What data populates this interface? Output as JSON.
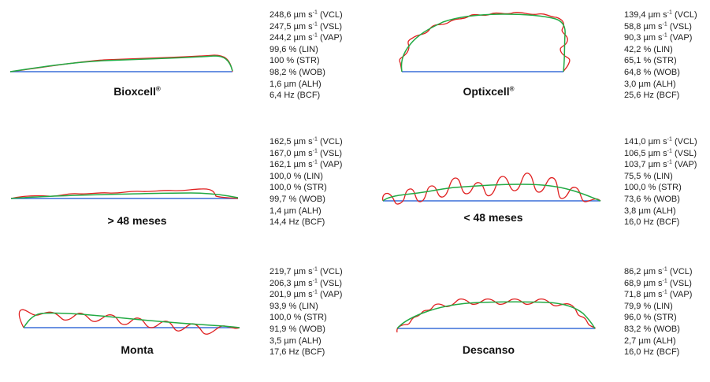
{
  "colors": {
    "vcl": "#e02020",
    "vap": "#22aa44",
    "vsl": "#3a6fd8"
  },
  "units": {
    "speed": "µm s",
    "exp": "-1",
    "pct": "%",
    "um": "µm",
    "hz": "Hz"
  },
  "panels": [
    {
      "name": "Bioxcell",
      "mark": "®",
      "metrics": {
        "vcl": "248,6",
        "vsl": "247,5",
        "vap": "244,2",
        "lin": "99,6",
        "str": "100",
        "wob": "98,2",
        "alh": "1,6",
        "bcf": "6,4"
      }
    },
    {
      "name": "Optixcell",
      "mark": "®",
      "metrics": {
        "vcl": "139,4",
        "vsl": "58,8",
        "vap": "90,3",
        "lin": "42,2",
        "str": "65,1",
        "wob": "64,8",
        "alh": "3,0",
        "bcf": "25,6"
      }
    },
    {
      "name": "> 48 meses",
      "mark": "",
      "metrics": {
        "vcl": "162,5",
        "vsl": "167,0",
        "vap": "162,1",
        "lin": "100,0",
        "str": "100,0",
        "wob": "99,7",
        "alh": "1,4",
        "bcf": "14,4"
      }
    },
    {
      "name": "< 48 meses",
      "mark": "",
      "metrics": {
        "vcl": "141,0",
        "vsl": "106,5",
        "vap": "103,7",
        "lin": "75,5",
        "str": "100,0",
        "wob": "73,6",
        "alh": "3,8",
        "bcf": "16,0"
      }
    },
    {
      "name": "Monta",
      "mark": "",
      "metrics": {
        "vcl": "219,7",
        "vsl": "206,3",
        "vap": "201,9",
        "lin": "93,9",
        "str": "100,0",
        "wob": "91,9",
        "alh": "3,5",
        "bcf": "17,6"
      }
    },
    {
      "name": "Descanso",
      "mark": "",
      "metrics": {
        "vcl": "86,2",
        "vsl": "68,9",
        "vap": "71,8",
        "lin": "79,9",
        "str": "96,0",
        "wob": "83,2",
        "alh": "2,7",
        "bcf": "16,0"
      }
    }
  ]
}
